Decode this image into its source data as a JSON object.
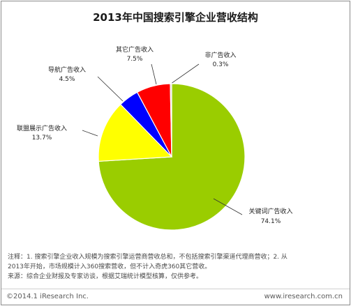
{
  "chart_data": {
    "type": "pie",
    "title": "2013年中国搜索引擎企业营收结构",
    "slices": [
      {
        "label": "关键词广告收入",
        "value": 74.1,
        "display": "74.1%",
        "color": "#9acd00",
        "label_pos": "bottom-right"
      },
      {
        "label": "联盟展示广告收入",
        "value": 13.7,
        "display": "13.7%",
        "color": "#ffff00",
        "label_pos": "left"
      },
      {
        "label": "导航广告收入",
        "value": 4.5,
        "display": "4.5%",
        "color": "#0000ff",
        "label_pos": "top-left"
      },
      {
        "label": "其它广告收入",
        "value": 7.5,
        "display": "7.5%",
        "color": "#ff0000",
        "label_pos": "top"
      },
      {
        "label": "非广告收入",
        "value": 0.3,
        "display": "0.3%",
        "color": "#c8c8c8",
        "label_pos": "top-right"
      }
    ]
  },
  "notes": {
    "line1": "注释：1. 搜索引擎企业收入规模为搜索引擎运营商营收总和，不包括搜索引擎渠道代理商营收；2. 从",
    "line2": "2013年开始，市场规模计入360搜索营收，但不计入奇虎360其它营收。",
    "line3": "来源：综合企业财报及专家访谈，根据艾瑞统计模型核算，仅供参考。"
  },
  "footer": {
    "copyright": "©2014.1 iResearch Inc.",
    "website": "www.iresearch.com.cn"
  }
}
